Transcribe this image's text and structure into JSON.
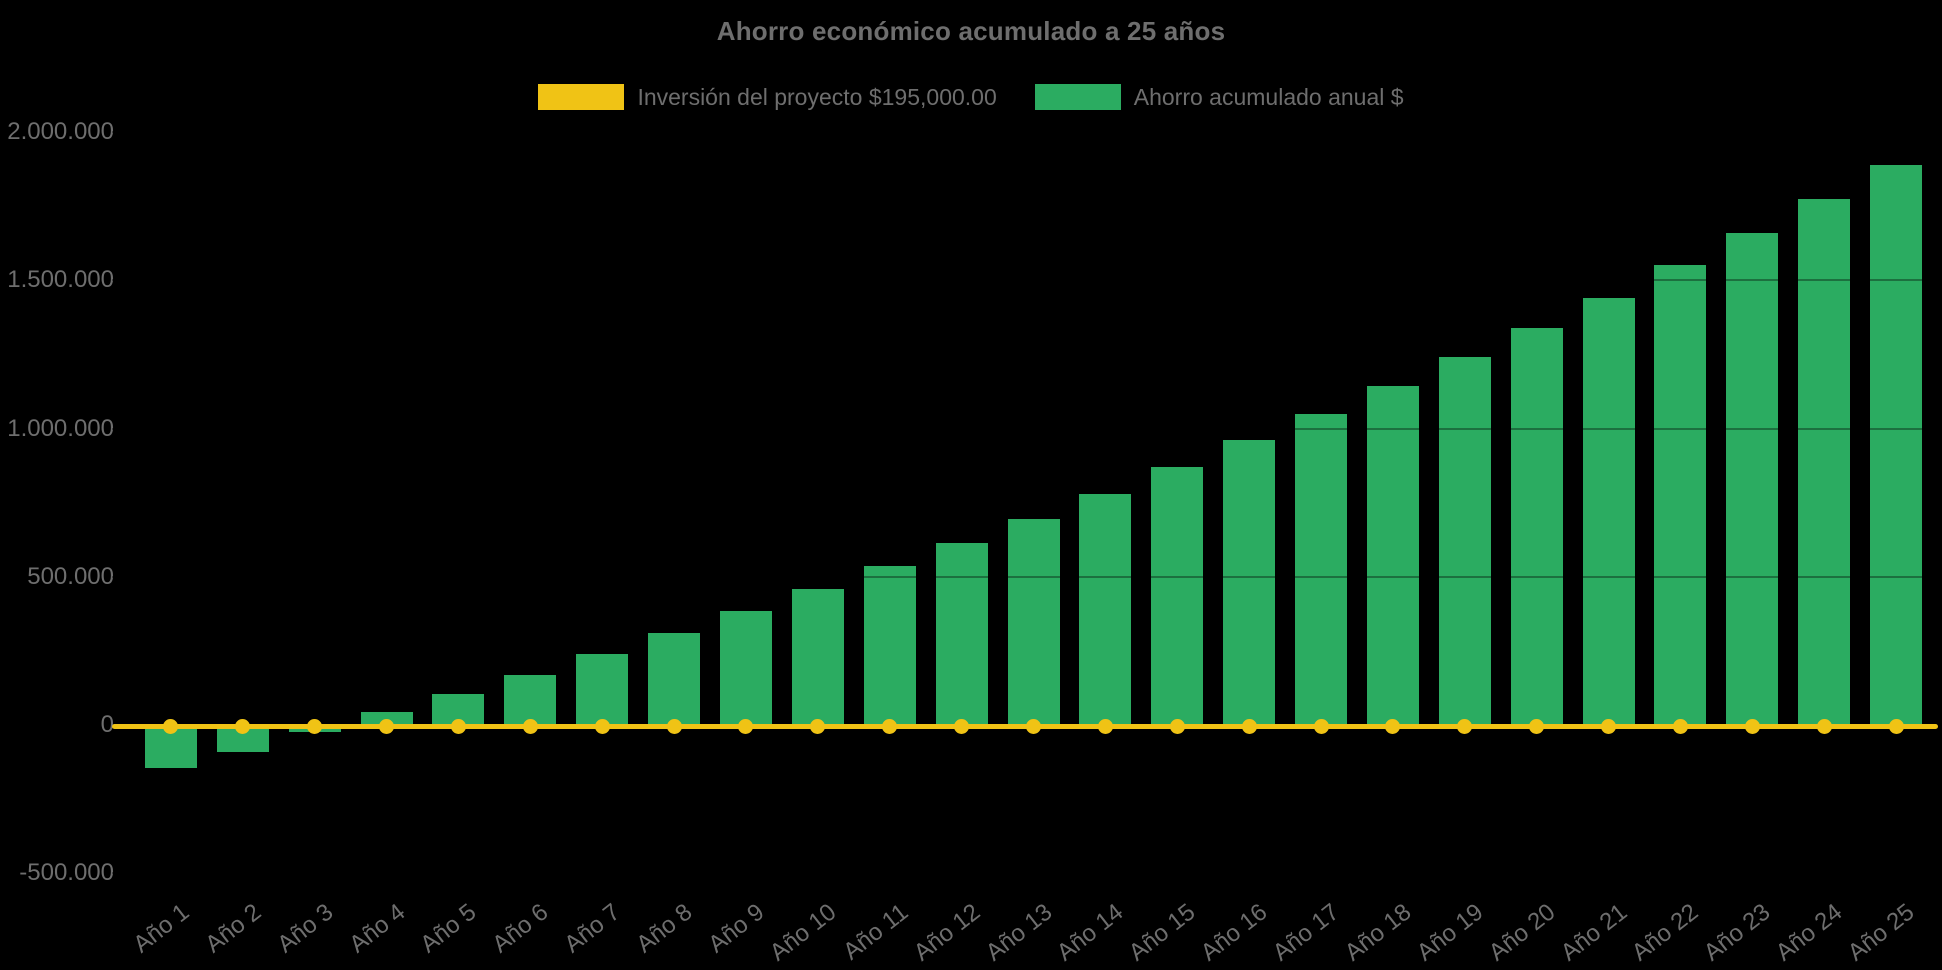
{
  "chart_data": {
    "type": "bar",
    "title": "Ahorro económico acumulado a 25 años",
    "categories": [
      "Año 1",
      "Año 2",
      "Año 3",
      "Año 4",
      "Año 5",
      "Año 6",
      "Año 7",
      "Año 8",
      "Año 9",
      "Año 10",
      "Año 11",
      "Año 12",
      "Año 13",
      "Año 14",
      "Año 15",
      "Año 16",
      "Año 17",
      "Año 18",
      "Año 19",
      "Año 20",
      "Año 21",
      "Año 22",
      "Año 23",
      "Año 24",
      "Año 25"
    ],
    "series": [
      {
        "name": "Inversión del proyecto $195,000.00",
        "type": "line",
        "color_key": "yellow",
        "constant_value": 0,
        "point_markers": true
      },
      {
        "name": "Ahorro acumulado anual $",
        "type": "bar",
        "color_key": "green",
        "values": [
          -145000,
          -90000,
          -25000,
          45000,
          105000,
          170000,
          240000,
          310000,
          385000,
          460000,
          535000,
          615000,
          695000,
          780000,
          870000,
          960000,
          1050000,
          1145000,
          1240000,
          1340000,
          1440000,
          1550000,
          1660000,
          1775000,
          1890000
        ]
      }
    ],
    "y_axis": {
      "min": -500000,
      "max": 2000000,
      "tick_step": 500000,
      "ticks": [
        {
          "label": "2.000.000",
          "value": 2000000
        },
        {
          "label": "1.500.000",
          "value": 1500000
        },
        {
          "label": "1.000.000",
          "value": 1000000
        },
        {
          "label": "500.000",
          "value": 500000
        },
        {
          "label": "0",
          "value": 0
        },
        {
          "label": "-500.000",
          "value": -500000
        }
      ]
    },
    "x_label_rotation_deg": -38,
    "legend_position": "top",
    "gridlines": "subtle dark lines visible only across bars"
  },
  "colors": {
    "yellow": "#F0C315",
    "green": "#2BAC61",
    "text": "#6E6E6E",
    "background": "#000000"
  }
}
